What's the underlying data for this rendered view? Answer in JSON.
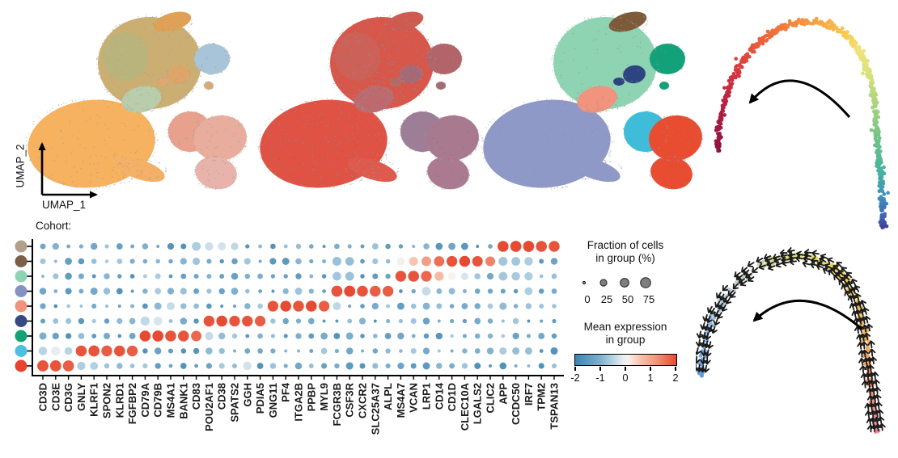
{
  "figure": {
    "axis": {
      "x_label": "UMAP_1",
      "y_label": "UMAP_2"
    },
    "cohort_label": "Cohort:",
    "legend": {
      "fraction_title_line1": "Fraction of cells",
      "fraction_title_line2": "in group (%)",
      "fraction_ticks": [
        "0",
        "25",
        "50",
        "75"
      ],
      "fraction_values": [
        0,
        25,
        50,
        75
      ],
      "expression_title_line1": "Mean expression",
      "expression_title_line2": "in group",
      "expression_ticks": [
        "-2",
        "-1",
        "0",
        "1",
        "2"
      ]
    }
  },
  "chart_data": [
    {
      "id": "umap-blended-cohorts",
      "type": "scatter",
      "description": "UMAP embedding, clusters shown with blended warm sample colors",
      "x_label": "UMAP_1",
      "y_label": "UMAP_2",
      "cluster_fills": {
        "top": "#cbaf72",
        "top_patch": "#e0a156",
        "top_accent": "#aab883",
        "big_left": "#f6b25e",
        "big_left_tail": "#f3b066",
        "center_small": "#b9ccab",
        "island_navy": "#dfa468",
        "island_navy2": "#e0a870",
        "island_teal": "#a8c4d8",
        "island_teal2": "#d8a97a",
        "lower_cyan": "#e8a18c",
        "lower_red": "#e9ad9d",
        "lower_tail": "#e7b3ab"
      },
      "speckles": [
        [
          "#98a0a6",
          220
        ]
      ]
    },
    {
      "id": "umap-cohort",
      "type": "scatter",
      "description": "UMAP embedding colored by cohort (red vs blue mix)",
      "cluster_fills": {
        "top": "#d7574a",
        "top_patch": "#cf5a50",
        "top_accent": "#c66a62",
        "big_left": "#e05244",
        "big_left_tail": "#df5a4c",
        "center_small": "#bd6a6f",
        "island_navy": "#a56a77",
        "island_navy2": "#b06a6a",
        "island_teal": "#b36468",
        "island_teal2": "#a86a72",
        "lower_cyan": "#9d7e96",
        "lower_red": "#a8798f",
        "lower_tail": "#ab7a90"
      },
      "speckles": [
        [
          "#7d8fae",
          520
        ],
        [
          "#c05548",
          160
        ]
      ]
    },
    {
      "id": "umap-clusters",
      "type": "scatter",
      "description": "UMAP embedding colored by cell-type cluster",
      "cluster_fills": {
        "top": "#8ed4b2",
        "top_patch": "#7d5b39",
        "top_accent": "#8ed4b2",
        "big_left": "#8f99c8",
        "big_left_tail": "#8f99c8",
        "center_small": "#f2937d",
        "island_navy": "#2d4483",
        "island_navy2": "#2d4483",
        "island_teal": "#13a179",
        "island_teal2": "#13a179",
        "lower_cyan": "#3fbcd9",
        "lower_red": "#e84c31",
        "lower_tail": "#e84c31"
      },
      "speckles": [
        [
          "#8a9096",
          130
        ]
      ]
    },
    {
      "id": "pseudotime-trajectory",
      "type": "scatter",
      "description": "Arch-shaped trajectory colored by pseudotime, counterclockwise arrow",
      "annotation_arrow": "counterclockwise",
      "color_stops": [
        [
          0,
          "#8c1341"
        ],
        [
          0.08,
          "#b01d42"
        ],
        [
          0.16,
          "#d23440"
        ],
        [
          0.24,
          "#e85a3a"
        ],
        [
          0.32,
          "#f1813c"
        ],
        [
          0.4,
          "#f8a845"
        ],
        [
          0.47,
          "#f9c94f"
        ],
        [
          0.53,
          "#f2e27c"
        ],
        [
          0.6,
          "#d8e27a"
        ],
        [
          0.68,
          "#a8d47c"
        ],
        [
          0.76,
          "#6ec386"
        ],
        [
          0.84,
          "#45b29f"
        ],
        [
          0.9,
          "#3f8fc0"
        ],
        [
          0.96,
          "#3f5fae"
        ],
        [
          1,
          "#413d97"
        ]
      ]
    },
    {
      "id": "marker-gene-dotplot",
      "type": "heatmap",
      "subtype": "dotplot",
      "title": "",
      "genes": [
        "CD3D",
        "CD3E",
        "CD3G",
        "GNLY",
        "KLRF1",
        "SPON2",
        "KLRD1",
        "FGFBP2",
        "CD79A",
        "CD79B",
        "MS4A1",
        "BANK1",
        "CD83",
        "POU2AF1",
        "CD38",
        "SPATS2",
        "GGH",
        "PDIA5",
        "GNG11",
        "PF4",
        "ITGA2B",
        "PPBP",
        "MYL9",
        "FCGR3B",
        "CSF3R",
        "CXCR2",
        "SLC25A37",
        "ALPL",
        "MS4A7",
        "VCAN",
        "LRP1",
        "CD14",
        "CD1D",
        "CLEC10A",
        "LGALS2",
        "CLIC2",
        "APP",
        "CCDC50",
        "IRF7",
        "TPM2",
        "TSPAN13"
      ],
      "color_scale": {
        "domain": [
          -2,
          2
        ],
        "stops": [
          [
            -2,
            "#3d85b0"
          ],
          [
            -1,
            "#7fb0cf"
          ],
          [
            -0.5,
            "#b9d4e4"
          ],
          [
            -0.1,
            "#eceff1"
          ],
          [
            0.1,
            "#f9f1ed"
          ],
          [
            0.6,
            "#f8c0ab"
          ],
          [
            1.2,
            "#f2967c"
          ],
          [
            2,
            "#e64a32"
          ]
        ]
      },
      "size_legend_percent": [
        0,
        25,
        50,
        75
      ],
      "rows": [
        {
          "color": "#b3a088",
          "cells": {
            "12": [
              -0.6,
              52
            ],
            "13": [
              -0.35,
              46
            ],
            "14": [
              -0.3,
              42
            ],
            "15": [
              -0.45,
              34
            ],
            "36": [
              2,
              90
            ],
            "37": [
              2,
              92
            ],
            "38": [
              2,
              92
            ],
            "39": [
              1.9,
              90
            ],
            "40": [
              1.9,
              88
            ]
          }
        },
        {
          "color": "#7d5f48",
          "cells": {
            "23": [
              -0.75,
              55
            ],
            "24": [
              -0.8,
              50
            ],
            "28": [
              0,
              42
            ],
            "29": [
              0.55,
              55
            ],
            "30": [
              1.1,
              65
            ],
            "31": [
              1.6,
              78
            ],
            "32": [
              1.9,
              85
            ],
            "33": [
              2,
              88
            ],
            "34": [
              1.9,
              82
            ],
            "35": [
              1.4,
              68
            ],
            "36": [
              -0.7,
              55
            ],
            "37": [
              -0.7,
              52
            ],
            "38": [
              -0.6,
              48
            ]
          }
        },
        {
          "color": "#8ed4b2",
          "cells": {
            "23": [
              -0.7,
              50
            ],
            "24": [
              -0.75,
              52
            ],
            "28": [
              1.9,
              88
            ],
            "29": [
              1.9,
              90
            ],
            "30": [
              1.7,
              85
            ],
            "31": [
              0.7,
              58
            ],
            "32": [
              0.1,
              40
            ],
            "33": [
              -0.25,
              34
            ],
            "36": [
              -0.7,
              50
            ],
            "37": [
              -0.65,
              48
            ],
            "38": [
              -0.6,
              45
            ]
          }
        },
        {
          "color": "#8590c4",
          "cells": {
            "23": [
              1.9,
              92
            ],
            "24": [
              2,
              94
            ],
            "25": [
              1.9,
              90
            ],
            "26": [
              1.8,
              88
            ],
            "27": [
              1.8,
              86
            ],
            "30": [
              -0.4,
              50
            ],
            "38": [
              -0.6,
              40
            ]
          }
        },
        {
          "color": "#f2937d",
          "cells": {
            "10": [
              -0.4,
              40
            ],
            "18": [
              1.9,
              85
            ],
            "19": [
              2,
              90
            ],
            "20": [
              1.9,
              88
            ],
            "21": [
              2,
              90
            ],
            "22": [
              1.8,
              85
            ],
            "23": [
              -0.45,
              42
            ]
          }
        },
        {
          "color": "#344a80",
          "cells": {
            "8": [
              -0.45,
              55
            ],
            "9": [
              -0.25,
              52
            ],
            "13": [
              1.9,
              88
            ],
            "14": [
              2,
              90
            ],
            "15": [
              1.9,
              86
            ],
            "16": [
              1.9,
              86
            ],
            "17": [
              1.8,
              84
            ]
          }
        },
        {
          "color": "#13a179",
          "cells": {
            "8": [
              2,
              90
            ],
            "9": [
              2,
              92
            ],
            "10": [
              1.9,
              90
            ],
            "11": [
              1.9,
              88
            ],
            "12": [
              1.7,
              80
            ],
            "13": [
              -0.4,
              45
            ]
          }
        },
        {
          "color": "#4cc0e0",
          "cells": {
            "0": [
              -0.5,
              48
            ],
            "1": [
              -0.15,
              55
            ],
            "2": [
              -0.5,
              38
            ],
            "3": [
              1.9,
              90
            ],
            "4": [
              1.9,
              92
            ],
            "5": [
              1.8,
              88
            ],
            "6": [
              1.9,
              90
            ],
            "7": [
              1.8,
              86
            ]
          }
        },
        {
          "color": "#e8432e",
          "cells": {
            "0": [
              1.9,
              95
            ],
            "1": [
              1.9,
              95
            ],
            "2": [
              1.8,
              92
            ],
            "3": [
              -0.6,
              45
            ],
            "4": [
              -0.55,
              40
            ],
            "16": [
              -0.3,
              48
            ]
          }
        }
      ]
    },
    {
      "id": "rna-velocity",
      "type": "scatter",
      "subtype": "velocity-arrows",
      "description": "Arch-shaped embedding overlaid with black velocity arrows, counterclockwise arrow",
      "annotation_arrow": "counterclockwise",
      "color_stops": [
        [
          0,
          "#5f9bd8"
        ],
        [
          0.1,
          "#86b4e4"
        ],
        [
          0.22,
          "#b9cdd8"
        ],
        [
          0.34,
          "#cdd6a0"
        ],
        [
          0.46,
          "#e3dc66"
        ],
        [
          0.56,
          "#eed24e"
        ],
        [
          0.68,
          "#f0bc55"
        ],
        [
          0.8,
          "#f0a266"
        ],
        [
          0.9,
          "#ef8f7b"
        ],
        [
          1,
          "#ef8a95"
        ]
      ]
    }
  ]
}
